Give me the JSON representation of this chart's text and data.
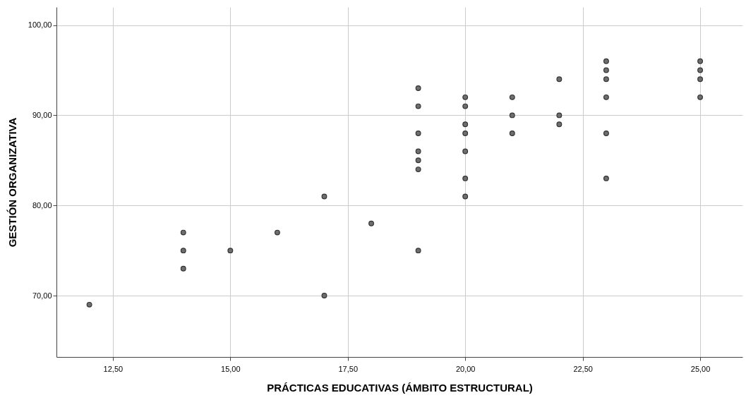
{
  "chart_data": {
    "type": "scatter",
    "xlabel": "PRÁCTICAS EDUCATIVAS (ÁMBITO ESTRUCTURAL)",
    "ylabel": "GESTIÓN ORGANIZATIVA",
    "series": [
      {
        "color": "#6e6e6e",
        "x": [
          12,
          14,
          14,
          14,
          15,
          16,
          17,
          17,
          18,
          19,
          19,
          19,
          19,
          19,
          19,
          19,
          20,
          20,
          20,
          20,
          20,
          20,
          20,
          21,
          21,
          21,
          22,
          22,
          22,
          23,
          23,
          23,
          23,
          23,
          23,
          25,
          25,
          25,
          25
        ],
        "values": [
          69,
          77,
          75,
          73,
          75,
          77,
          81,
          70,
          78,
          93,
          91,
          88,
          86,
          85,
          84,
          75,
          92,
          91,
          89,
          88,
          86,
          83,
          81,
          92,
          90,
          88,
          94,
          90,
          89,
          96,
          95,
          94,
          92,
          88,
          83,
          96,
          95,
          94,
          92
        ]
      }
    ],
    "xlim": [
      11.3,
      25.9
    ],
    "ylim": [
      63.2,
      102
    ],
    "xticks": [
      {
        "value": 12.5,
        "label": "12,50"
      },
      {
        "value": 15,
        "label": "15,00"
      },
      {
        "value": 17.5,
        "label": "17,50"
      },
      {
        "value": 20,
        "label": "20,00"
      },
      {
        "value": 22.5,
        "label": "22,50"
      },
      {
        "value": 25,
        "label": "25,00"
      }
    ],
    "yticks": [
      {
        "value": 70,
        "label": "70,00"
      },
      {
        "value": 80,
        "label": "80,00"
      },
      {
        "value": 90,
        "label": "90,00"
      },
      {
        "value": 100,
        "label": "100,00"
      }
    ],
    "grid": true,
    "marker": "circle"
  }
}
